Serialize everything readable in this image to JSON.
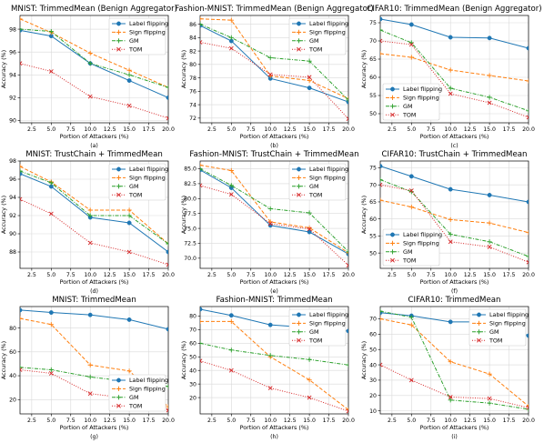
{
  "styles": {
    "series": [
      {
        "color": "#1f77b4",
        "dash": "",
        "marker": "circle"
      },
      {
        "color": "#ff7f0e",
        "dash": "4,2",
        "marker": "plus"
      },
      {
        "color": "#2ca02c",
        "dash": "4,1.5,1,1.5",
        "marker": "plus"
      },
      {
        "color": "#d62728",
        "dash": "1,1.6",
        "marker": "x"
      }
    ]
  },
  "chart_data": [
    {
      "type": "line",
      "title": "MNIST: TrimmedMean (Benign Aggregator)",
      "caption": "(a)",
      "xlabel": "Portion of Attackers (%)",
      "ylabel": "Accuracy (%)",
      "xlim": [
        1,
        20
      ],
      "ylim": [
        89.8,
        99.2
      ],
      "xticks": [
        "2.5",
        "5.0",
        "7.5",
        "10.0",
        "12.5",
        "15.0",
        "17.5",
        "20.0"
      ],
      "yticks": [
        "90",
        "92",
        "94",
        "96",
        "98"
      ],
      "legend": "upper right",
      "grid": true,
      "x": [
        1,
        5,
        10,
        15,
        20
      ],
      "series": [
        {
          "name": "Label flipping",
          "values": [
            97.9,
            97.4,
            95.0,
            93.5,
            92.0
          ]
        },
        {
          "name": "Sign flipping",
          "values": [
            98.9,
            97.7,
            95.9,
            94.4,
            92.9
          ]
        },
        {
          "name": "GM",
          "values": [
            98.0,
            97.8,
            95.0,
            94.0,
            92.9
          ]
        },
        {
          "name": "TOM",
          "values": [
            95.0,
            94.3,
            92.1,
            91.3,
            90.2
          ]
        }
      ]
    },
    {
      "type": "line",
      "title": "Fashion-MNIST: TrimmedMean (Benign Aggregator)",
      "caption": "(b)",
      "xlabel": "Portion of Attackers (%)",
      "ylabel": "Accuracy (%)",
      "xlim": [
        1,
        20
      ],
      "ylim": [
        71.3,
        87.3
      ],
      "xticks": [
        "2.5",
        "5.0",
        "7.5",
        "10.0",
        "12.5",
        "15.0",
        "17.5",
        "20.0"
      ],
      "yticks": [
        "72",
        "74",
        "76",
        "78",
        "80",
        "82",
        "84",
        "86"
      ],
      "legend": "upper right",
      "grid": true,
      "x": [
        1,
        5,
        10,
        15,
        20
      ],
      "series": [
        {
          "name": "Label flipping",
          "values": [
            85.8,
            83.5,
            77.9,
            76.5,
            74.4
          ]
        },
        {
          "name": "Sign flipping",
          "values": [
            86.8,
            86.6,
            78.3,
            77.6,
            74.9
          ]
        },
        {
          "name": "GM",
          "values": [
            86.0,
            84.0,
            81.0,
            80.5,
            74.7
          ]
        },
        {
          "name": "TOM",
          "values": [
            83.3,
            82.4,
            78.5,
            78.1,
            71.9
          ]
        }
      ]
    },
    {
      "type": "line",
      "title": "CIFAR10: TrimmedMean (Benign Aggregator)",
      "caption": "(c)",
      "xlabel": "Portion of Attackers (%)",
      "ylabel": "Accuracy (%)",
      "xlim": [
        1,
        20
      ],
      "ylim": [
        47.5,
        77.0
      ],
      "xticks": [
        "2.5",
        "5.0",
        "7.5",
        "10.0",
        "12.5",
        "15.0",
        "17.5",
        "20.0"
      ],
      "yticks": [
        "50",
        "55",
        "60",
        "65",
        "70",
        "75"
      ],
      "legend": "lower left",
      "grid": true,
      "x": [
        1,
        5,
        10,
        15,
        20
      ],
      "series": [
        {
          "name": "Label flipping",
          "values": [
            76.0,
            74.5,
            71.0,
            70.8,
            68.0
          ]
        },
        {
          "name": "Sign flipping",
          "values": [
            66.5,
            65.5,
            62.0,
            60.5,
            59.0
          ]
        },
        {
          "name": "GM",
          "values": [
            73.0,
            69.5,
            57.0,
            54.5,
            50.8
          ]
        },
        {
          "name": "TOM",
          "values": [
            70.0,
            69.0,
            55.5,
            53.0,
            49.0
          ]
        }
      ]
    },
    {
      "type": "line",
      "title": "MNIST: TrustChain + TrimmedMean",
      "caption": "(d)",
      "xlabel": "Portion of Attackers (%)",
      "ylabel": "Accuracy (%)",
      "xlim": [
        1,
        20
      ],
      "ylim": [
        86.2,
        98.0
      ],
      "xticks": [
        "2.5",
        "5.0",
        "7.5",
        "10.0",
        "12.5",
        "15.0",
        "17.5",
        "20.0"
      ],
      "yticks": [
        "88",
        "90",
        "92",
        "94",
        "96",
        "98"
      ],
      "legend": "upper right",
      "grid": true,
      "x": [
        1,
        5,
        10,
        15,
        20
      ],
      "series": [
        {
          "name": "Label flipping",
          "values": [
            96.6,
            95.2,
            91.8,
            91.2,
            88.0
          ]
        },
        {
          "name": "Sign flipping",
          "values": [
            97.4,
            95.7,
            92.6,
            92.6,
            88.9
          ]
        },
        {
          "name": "GM",
          "values": [
            96.9,
            95.6,
            92.0,
            92.0,
            88.9
          ]
        },
        {
          "name": "TOM",
          "values": [
            93.8,
            92.2,
            89.0,
            88.0,
            86.6
          ]
        }
      ]
    },
    {
      "type": "line",
      "title": "Fashion-MNIST: TrustChain + TrimmedMean",
      "caption": "(e)",
      "xlabel": "Portion of Attackers (%)",
      "ylabel": "Accuracy (%)",
      "xlim": [
        1,
        20
      ],
      "ylim": [
        68.3,
        86.3
      ],
      "xticks": [
        "2.5",
        "5.0",
        "7.5",
        "10.0",
        "12.5",
        "15.0",
        "17.5",
        "20.0"
      ],
      "yticks": [
        "70.0",
        "72.5",
        "75.0",
        "77.5",
        "80.0",
        "82.5",
        "85.0"
      ],
      "legend": "upper right",
      "grid": true,
      "x": [
        1,
        5,
        10,
        15,
        20
      ],
      "series": [
        {
          "name": "Label flipping",
          "values": [
            84.8,
            81.8,
            75.5,
            74.4,
            70.7
          ]
        },
        {
          "name": "Sign flipping",
          "values": [
            85.6,
            84.7,
            76.1,
            75.1,
            70.9
          ]
        },
        {
          "name": "GM",
          "values": [
            85.0,
            82.2,
            78.3,
            77.6,
            71.1
          ]
        },
        {
          "name": "TOM",
          "values": [
            82.2,
            80.7,
            75.8,
            74.9,
            68.8
          ]
        }
      ]
    },
    {
      "type": "line",
      "title": "CIFAR10: TrustChain + TrimmedMean",
      "caption": "(f)",
      "xlabel": "Portion of Attackers (%)",
      "ylabel": "Accuracy (%)",
      "xlim": [
        1,
        20
      ],
      "ylim": [
        45.5,
        77.0
      ],
      "xticks": [
        "2.5",
        "5.0",
        "7.5",
        "10.0",
        "12.5",
        "15.0",
        "17.5",
        "20.0"
      ],
      "yticks": [
        "50",
        "55",
        "60",
        "65",
        "70",
        "75"
      ],
      "legend": "lower left",
      "grid": true,
      "x": [
        1,
        5,
        10,
        15,
        20
      ],
      "series": [
        {
          "name": "Label flipping",
          "values": [
            75.5,
            72.5,
            68.7,
            67.0,
            65.0
          ]
        },
        {
          "name": "Sign flipping",
          "values": [
            65.5,
            63.5,
            59.8,
            58.8,
            56.0
          ]
        },
        {
          "name": "GM",
          "values": [
            71.5,
            68.0,
            55.5,
            53.3,
            49.0
          ]
        },
        {
          "name": "TOM",
          "values": [
            70.0,
            68.3,
            53.3,
            51.8,
            47.3
          ]
        }
      ]
    },
    {
      "type": "line",
      "title": "MNIST: TrimmedMean",
      "caption": "(g)",
      "xlabel": "Portion of Attackers (%)",
      "ylabel": "Accuracy (%)",
      "xlim": [
        1,
        20
      ],
      "ylim": [
        8,
        98
      ],
      "xticks": [
        "2.5",
        "5.0",
        "7.5",
        "10.0",
        "12.5",
        "15.0",
        "17.5",
        "20.0"
      ],
      "yticks": [
        "20",
        "40",
        "60",
        "80"
      ],
      "legend": "lower right",
      "grid": true,
      "x": [
        1,
        5,
        10,
        15,
        20
      ],
      "series": [
        {
          "name": "Label flipping",
          "values": [
            95.0,
            93.0,
            91.0,
            87.0,
            79.0
          ]
        },
        {
          "name": "Sign flipping",
          "values": [
            88.0,
            83.0,
            49.0,
            44.0,
            14.0
          ]
        },
        {
          "name": "GM",
          "values": [
            47.0,
            45.0,
            39.0,
            35.0,
            31.0
          ]
        },
        {
          "name": "TOM",
          "values": [
            45.0,
            42.0,
            25.0,
            21.0,
            11.0
          ]
        }
      ]
    },
    {
      "type": "line",
      "title": "Fashion-MNIST: TrimmedMean",
      "caption": "(h)",
      "xlabel": "Portion of Attackers (%)",
      "ylabel": "Accuracy (%)",
      "xlim": [
        1,
        20
      ],
      "ylim": [
        8,
        87
      ],
      "xticks": [
        "2.5",
        "5.0",
        "7.5",
        "10.0",
        "12.5",
        "15.0",
        "17.5",
        "20.0"
      ],
      "yticks": [
        "20",
        "30",
        "40",
        "50",
        "60",
        "70",
        "80"
      ],
      "legend": "upper right",
      "grid": true,
      "x": [
        1,
        5,
        10,
        15,
        20
      ],
      "series": [
        {
          "name": "Label flipping",
          "values": [
            85.0,
            80.5,
            73.5,
            71.5,
            69.0
          ]
        },
        {
          "name": "Sign flipping",
          "values": [
            76.0,
            76.0,
            50.0,
            33.0,
            11.0
          ]
        },
        {
          "name": "GM",
          "values": [
            60.0,
            55.0,
            51.0,
            48.0,
            44.0
          ]
        },
        {
          "name": "TOM",
          "values": [
            47.0,
            40.0,
            27.0,
            20.0,
            10.0
          ]
        }
      ]
    },
    {
      "type": "line",
      "title": "CIFAR10: TrimmedMean",
      "caption": "(i)",
      "xlabel": "Portion of Attackers (%)",
      "ylabel": "Accuracy (%)",
      "xlim": [
        1,
        20
      ],
      "ylim": [
        8,
        78
      ],
      "xticks": [
        "2.5",
        "5.0",
        "7.5",
        "10.0",
        "12.5",
        "15.0",
        "17.5",
        "20.0"
      ],
      "yticks": [
        "10",
        "20",
        "30",
        "40",
        "50",
        "60",
        "70"
      ],
      "legend": "upper right",
      "grid": true,
      "x": [
        1,
        5,
        10,
        15,
        20
      ],
      "series": [
        {
          "name": "Label flipping",
          "values": [
            74.0,
            72.0,
            68.0,
            68.0,
            59.0
          ]
        },
        {
          "name": "Sign flipping",
          "values": [
            70.0,
            66.0,
            42.0,
            34.0,
            13.0
          ]
        },
        {
          "name": "GM",
          "values": [
            75.0,
            71.0,
            17.0,
            15.0,
            11.0
          ]
        },
        {
          "name": "TOM",
          "values": [
            40.0,
            30.0,
            19.0,
            18.0,
            12.0
          ]
        }
      ]
    }
  ]
}
